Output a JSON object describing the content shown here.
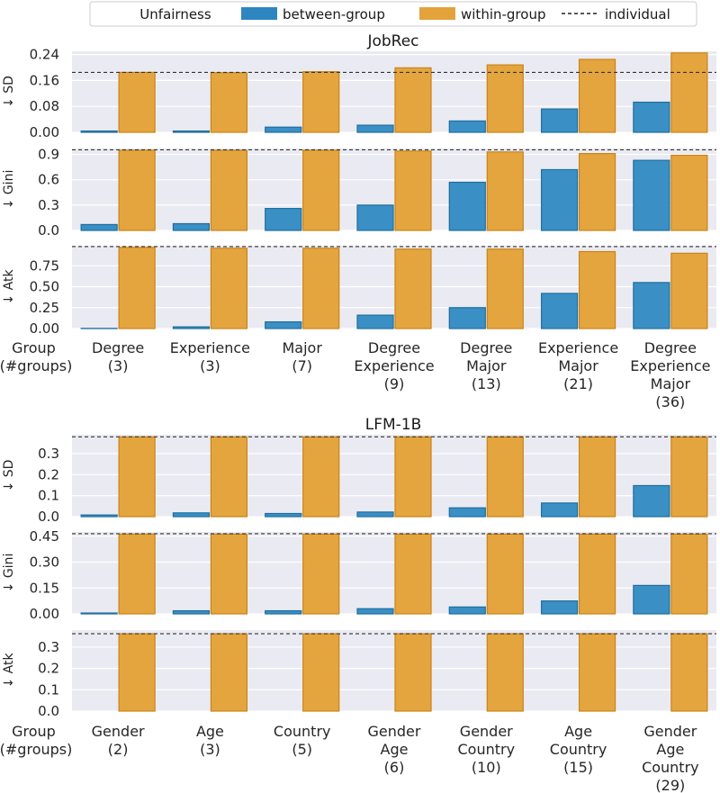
{
  "legend": {
    "title": "Unfairness",
    "entries": [
      {
        "name": "between-group",
        "color": "#2e86c1"
      },
      {
        "name": "within-group",
        "color": "#e3a33a"
      },
      {
        "name": "individual",
        "style": "dashed"
      }
    ]
  },
  "colors": {
    "between": "#3a8fc4",
    "between_edge": "#1f6f9e",
    "within": "#e4a53e",
    "within_edge": "#c98418",
    "panel_bg": "#eaeaf2",
    "grid": "#ffffff"
  },
  "group_label": [
    "Group",
    "(#groups)"
  ],
  "chart_data": [
    {
      "type": "bar",
      "title": "JobRec",
      "categories": [
        [
          "Degree",
          "(3)"
        ],
        [
          "Experience",
          "(3)"
        ],
        [
          "Major",
          "(7)"
        ],
        [
          "Degree",
          "Experience",
          "(9)"
        ],
        [
          "Degree",
          "Major",
          "(13)"
        ],
        [
          "Experience",
          "Major",
          "(21)"
        ],
        [
          "Degree",
          "Experience",
          "Major",
          "(36)"
        ]
      ],
      "panels": [
        {
          "ylabel": "↓ SD",
          "ylim": [
            0,
            0.25
          ],
          "yticks": [
            "0.00",
            "0.08",
            "0.16",
            "0.24"
          ],
          "series": [
            {
              "name": "between-group",
              "values": [
                0.004,
                0.004,
                0.016,
                0.022,
                0.035,
                0.072,
                0.093
              ]
            },
            {
              "name": "within-group",
              "values": [
                0.185,
                0.184,
                0.187,
                0.199,
                0.208,
                0.225,
                0.245
              ]
            }
          ],
          "individual": 0.185
        },
        {
          "ylabel": "↓ Gini",
          "ylim": [
            0,
            0.97
          ],
          "yticks": [
            "0.0",
            "0.3",
            "0.6",
            "0.9"
          ],
          "series": [
            {
              "name": "between-group",
              "values": [
                0.07,
                0.08,
                0.26,
                0.3,
                0.57,
                0.72,
                0.83
              ]
            },
            {
              "name": "within-group",
              "values": [
                0.95,
                0.95,
                0.95,
                0.94,
                0.93,
                0.91,
                0.89
              ]
            }
          ],
          "individual": 0.955
        },
        {
          "ylabel": "↓ Atk",
          "ylim": [
            0,
            0.99
          ],
          "yticks": [
            "0.00",
            "0.25",
            "0.50",
            "0.75"
          ],
          "series": [
            {
              "name": "between-group",
              "values": [
                0.002,
                0.02,
                0.08,
                0.16,
                0.25,
                0.42,
                0.55
              ]
            },
            {
              "name": "within-group",
              "values": [
                0.97,
                0.96,
                0.96,
                0.95,
                0.95,
                0.92,
                0.9
              ]
            }
          ],
          "individual": 0.98
        }
      ]
    },
    {
      "type": "bar",
      "title": "LFM-1B",
      "categories": [
        [
          "Gender",
          "(2)"
        ],
        [
          "Age",
          "(3)"
        ],
        [
          "Country",
          "(5)"
        ],
        [
          "Gender",
          "Age",
          "(6)"
        ],
        [
          "Gender",
          "Country",
          "(10)"
        ],
        [
          "Age",
          "Country",
          "(15)"
        ],
        [
          "Gender",
          "Age",
          "Country",
          "(29)"
        ]
      ],
      "panels": [
        {
          "ylabel": "↓ SD",
          "ylim": [
            0,
            0.39
          ],
          "yticks": [
            "0.0",
            "0.1",
            "0.2",
            "0.3"
          ],
          "series": [
            {
              "name": "between-group",
              "values": [
                0.008,
                0.018,
                0.015,
                0.022,
                0.042,
                0.065,
                0.148
              ]
            },
            {
              "name": "within-group",
              "values": [
                0.38,
                0.38,
                0.38,
                0.38,
                0.38,
                0.38,
                0.38
              ]
            }
          ],
          "individual": 0.38
        },
        {
          "ylabel": "↓ Gini",
          "ylim": [
            0,
            0.475
          ],
          "yticks": [
            "0.00",
            "0.15",
            "0.30",
            "0.45"
          ],
          "series": [
            {
              "name": "between-group",
              "values": [
                0.005,
                0.018,
                0.018,
                0.03,
                0.04,
                0.075,
                0.165
              ]
            },
            {
              "name": "within-group",
              "values": [
                0.463,
                0.463,
                0.463,
                0.463,
                0.463,
                0.463,
                0.463
              ]
            }
          ],
          "individual": 0.465
        },
        {
          "ylabel": "↓ Atk",
          "ylim": [
            0,
            0.38
          ],
          "yticks": [
            "0.0",
            "0.1",
            "0.2",
            "0.3"
          ],
          "series": [
            {
              "name": "between-group",
              "values": [
                0.0,
                0.0,
                0.0,
                0.0,
                0.0,
                0.0,
                0.0
              ]
            },
            {
              "name": "within-group",
              "values": [
                0.363,
                0.363,
                0.363,
                0.363,
                0.363,
                0.363,
                0.363
              ]
            }
          ],
          "individual": 0.363
        }
      ]
    }
  ]
}
